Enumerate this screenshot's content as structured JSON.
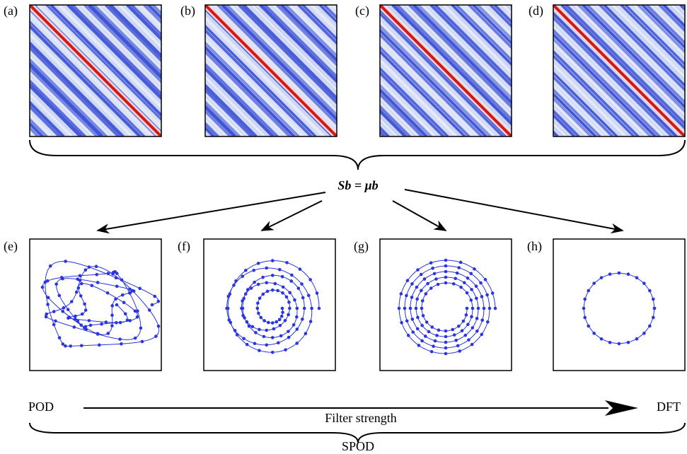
{
  "labels": [
    "(a)",
    "(b)",
    "(c)",
    "(d)",
    "(e)",
    "(f)",
    "(g)",
    "(h)"
  ],
  "equation": "Sb = μb",
  "axis_start": "POD",
  "axis_label": "Filter strength",
  "axis_end": "DFT",
  "brace_label": "SPOD"
}
